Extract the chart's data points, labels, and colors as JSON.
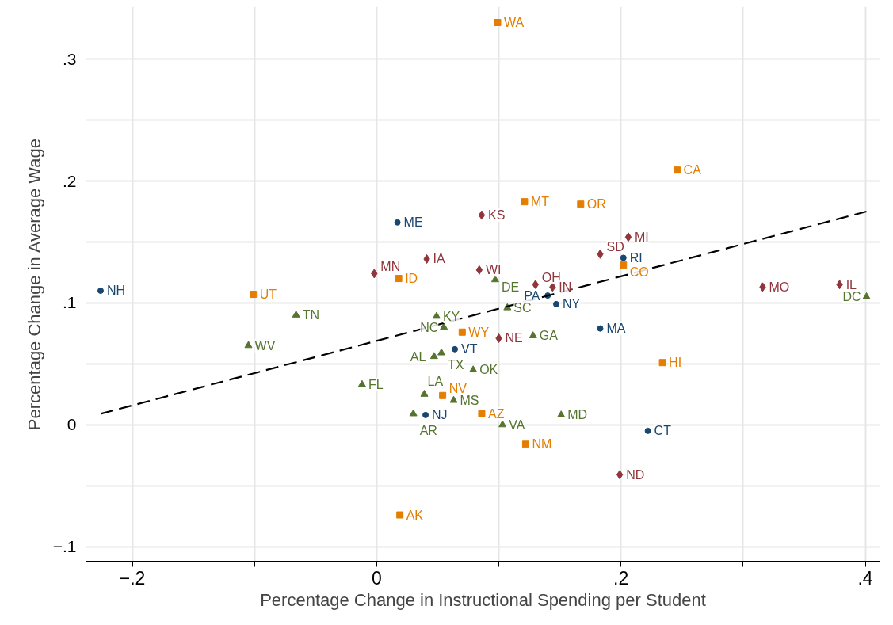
{
  "chart_data": {
    "type": "scatter",
    "xlabel": "Percentage Change in Instructional Spending per Student",
    "ylabel": "Percentage Change in Average Wage",
    "xlim": [
      -0.238,
      0.412
    ],
    "ylim": [
      -0.112,
      0.343
    ],
    "xticks": [
      {
        "value": -0.2,
        "label": "−.2"
      },
      {
        "value": -0.1,
        "label": null
      },
      0,
      {
        "value": 0.1,
        "label": null
      },
      {
        "value": 0.2,
        "label": ".2"
      },
      {
        "value": 0.3,
        "label": null
      },
      {
        "value": 0.4,
        "label": ".4"
      }
    ],
    "yticks": [
      {
        "value": -0.1,
        "label": "−.1"
      },
      {
        "value": -0.05,
        "label": null
      },
      0,
      {
        "value": 0.05,
        "label": null
      },
      {
        "value": 0.1,
        "label": ".1"
      },
      {
        "value": 0.15,
        "label": null
      },
      {
        "value": 0.2,
        "label": ".2"
      },
      {
        "value": 0.25,
        "label": null
      },
      {
        "value": 0.3,
        "label": ".3"
      }
    ],
    "grid": true,
    "series": [
      {
        "name": "NH",
        "color": "#1a476f",
        "marker": "circle",
        "x": [
          -0.226
        ],
        "values": [
          0.11
        ]
      },
      {
        "name": "ME",
        "color": "#1a476f",
        "marker": "circle",
        "x": [
          0.017
        ],
        "values": [
          0.166
        ]
      },
      {
        "name": "RI",
        "color": "#1a476f",
        "marker": "circle",
        "x": [
          0.202
        ],
        "values": [
          0.137
        ]
      },
      {
        "name": "PA",
        "color": "#1a476f",
        "marker": "circle",
        "x": [
          0.14
        ],
        "values": [
          0.106
        ]
      },
      {
        "name": "NY",
        "color": "#1a476f",
        "marker": "circle",
        "x": [
          0.147
        ],
        "values": [
          0.099
        ]
      },
      {
        "name": "MA",
        "color": "#1a476f",
        "marker": "circle",
        "x": [
          0.183
        ],
        "values": [
          0.079
        ]
      },
      {
        "name": "VT",
        "color": "#1a476f",
        "marker": "circle",
        "x": [
          0.064
        ],
        "values": [
          0.062
        ]
      },
      {
        "name": "NJ",
        "color": "#1a476f",
        "marker": "circle",
        "x": [
          0.04
        ],
        "values": [
          0.008
        ]
      },
      {
        "name": "CT",
        "color": "#1a476f",
        "marker": "circle",
        "x": [
          0.222
        ],
        "values": [
          -0.005
        ]
      },
      {
        "name": "KS",
        "color": "#90353b",
        "marker": "diamond",
        "x": [
          0.086
        ],
        "values": [
          0.172
        ]
      },
      {
        "name": "MN",
        "color": "#90353b",
        "marker": "diamond",
        "x": [
          -0.002
        ],
        "values": [
          0.124
        ]
      },
      {
        "name": "WI",
        "color": "#90353b",
        "marker": "diamond",
        "x": [
          0.084
        ],
        "values": [
          0.127
        ]
      },
      {
        "name": "OH",
        "color": "#90353b",
        "marker": "diamond",
        "x": [
          0.13
        ],
        "values": [
          0.115
        ]
      },
      {
        "name": "IN",
        "color": "#90353b",
        "marker": "diamond",
        "x": [
          0.144
        ],
        "values": [
          0.113
        ]
      },
      {
        "name": "NE",
        "color": "#90353b",
        "marker": "diamond",
        "x": [
          0.1
        ],
        "values": [
          0.071
        ]
      },
      {
        "name": "IA",
        "color": "#90353b",
        "marker": "diamond",
        "x": [
          0.041
        ],
        "values": [
          0.136
        ]
      },
      {
        "name": "MI",
        "color": "#90353b",
        "marker": "diamond",
        "x": [
          0.206
        ],
        "values": [
          0.154
        ]
      },
      {
        "name": "SD",
        "color": "#90353b",
        "marker": "diamond",
        "x": [
          0.183
        ],
        "values": [
          0.14
        ]
      },
      {
        "name": "MO",
        "color": "#90353b",
        "marker": "diamond",
        "x": [
          0.316
        ],
        "values": [
          0.113
        ]
      },
      {
        "name": "IL",
        "color": "#90353b",
        "marker": "diamond",
        "x": [
          0.379
        ],
        "values": [
          0.115
        ]
      },
      {
        "name": "ND",
        "color": "#90353b",
        "marker": "diamond",
        "x": [
          0.199
        ],
        "values": [
          -0.041
        ]
      },
      {
        "name": "WA",
        "color": "#e37e00",
        "marker": "square",
        "x": [
          0.099
        ],
        "values": [
          0.33
        ]
      },
      {
        "name": "MT",
        "color": "#e37e00",
        "marker": "square",
        "x": [
          0.121
        ],
        "values": [
          0.183
        ]
      },
      {
        "name": "OR",
        "color": "#e37e00",
        "marker": "square",
        "x": [
          0.167
        ],
        "values": [
          0.181
        ]
      },
      {
        "name": "CA",
        "color": "#e37e00",
        "marker": "square",
        "x": [
          0.246
        ],
        "values": [
          0.209
        ]
      },
      {
        "name": "ID",
        "color": "#e37e00",
        "marker": "square",
        "x": [
          0.018
        ],
        "values": [
          0.12
        ]
      },
      {
        "name": "WY",
        "color": "#e37e00",
        "marker": "square",
        "x": [
          0.07
        ],
        "values": [
          0.076
        ]
      },
      {
        "name": "NV",
        "color": "#e37e00",
        "marker": "square",
        "x": [
          0.054
        ],
        "values": [
          0.024
        ]
      },
      {
        "name": "AZ",
        "color": "#e37e00",
        "marker": "square",
        "x": [
          0.086
        ],
        "values": [
          0.009
        ]
      },
      {
        "name": "NM",
        "color": "#e37e00",
        "marker": "square",
        "x": [
          0.122
        ],
        "values": [
          -0.016
        ]
      },
      {
        "name": "AK",
        "color": "#e37e00",
        "marker": "square",
        "x": [
          0.019
        ],
        "values": [
          -0.074
        ]
      },
      {
        "name": "UT",
        "color": "#e37e00",
        "marker": "square",
        "x": [
          -0.101
        ],
        "values": [
          0.107
        ]
      },
      {
        "name": "CO",
        "color": "#e37e00",
        "marker": "square",
        "x": [
          0.202
        ],
        "values": [
          0.131
        ]
      },
      {
        "name": "HI",
        "color": "#e37e00",
        "marker": "square",
        "x": [
          0.234
        ],
        "values": [
          0.051
        ]
      },
      {
        "name": "DE",
        "color": "#55752f",
        "marker": "triangle",
        "x": [
          0.097
        ],
        "values": [
          0.119
        ]
      },
      {
        "name": "SC",
        "color": "#55752f",
        "marker": "triangle",
        "x": [
          0.107
        ],
        "values": [
          0.096
        ]
      },
      {
        "name": "KY",
        "color": "#55752f",
        "marker": "triangle",
        "x": [
          0.049
        ],
        "values": [
          0.089
        ]
      },
      {
        "name": "NC",
        "color": "#55752f",
        "marker": "triangle",
        "x": [
          0.055
        ],
        "values": [
          0.08
        ]
      },
      {
        "name": "TX",
        "color": "#55752f",
        "marker": "triangle",
        "x": [
          0.053
        ],
        "values": [
          0.059
        ]
      },
      {
        "name": "AL",
        "color": "#55752f",
        "marker": "triangle",
        "x": [
          0.047
        ],
        "values": [
          0.056
        ]
      },
      {
        "name": "OK",
        "color": "#55752f",
        "marker": "triangle",
        "x": [
          0.079
        ],
        "values": [
          0.045
        ]
      },
      {
        "name": "FL",
        "color": "#55752f",
        "marker": "triangle",
        "x": [
          -0.012
        ],
        "values": [
          0.033
        ]
      },
      {
        "name": "LA",
        "color": "#55752f",
        "marker": "triangle",
        "x": [
          0.039
        ],
        "values": [
          0.025
        ]
      },
      {
        "name": "MS",
        "color": "#55752f",
        "marker": "triangle",
        "x": [
          0.063
        ],
        "values": [
          0.02
        ]
      },
      {
        "name": "AR",
        "color": "#55752f",
        "marker": "triangle",
        "x": [
          0.03
        ],
        "values": [
          0.009
        ]
      },
      {
        "name": "VA",
        "color": "#55752f",
        "marker": "triangle",
        "x": [
          0.103
        ],
        "values": [
          0.0
        ]
      },
      {
        "name": "GA",
        "color": "#55752f",
        "marker": "triangle",
        "x": [
          0.128
        ],
        "values": [
          0.073
        ]
      },
      {
        "name": "MD",
        "color": "#55752f",
        "marker": "triangle",
        "x": [
          0.151
        ],
        "values": [
          0.008
        ]
      },
      {
        "name": "DC",
        "color": "#55752f",
        "marker": "triangle",
        "x": [
          0.401
        ],
        "values": [
          0.105
        ]
      },
      {
        "name": "TN",
        "color": "#55752f",
        "marker": "triangle",
        "x": [
          -0.066
        ],
        "values": [
          0.09
        ]
      },
      {
        "name": "WV",
        "color": "#55752f",
        "marker": "triangle",
        "x": [
          -0.105
        ],
        "values": [
          0.065
        ]
      },
      {
        "type": "line",
        "color": "#000000",
        "line_style": "dashed",
        "marker": "none",
        "x": [
          -0.226,
          0.401
        ],
        "values": [
          0.009,
          0.175
        ]
      }
    ]
  }
}
